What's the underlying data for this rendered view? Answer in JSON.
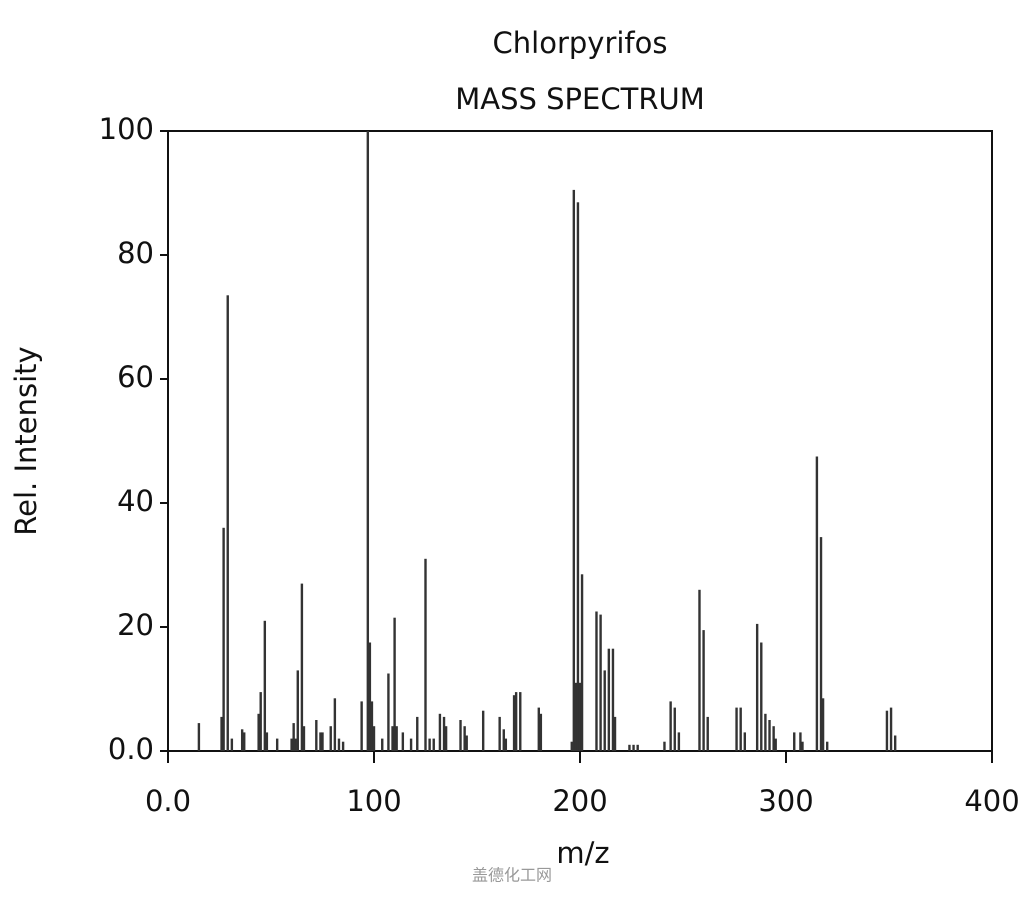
{
  "chart_data": {
    "type": "bar",
    "title": "Chlorpyrifos",
    "subtitle": "MASS SPECTRUM",
    "x_label": "m/z",
    "y_label": "Rel. Intensity",
    "watermark": "盖德化工网",
    "color": "#333333",
    "x": [
      15,
      26,
      27,
      29,
      31,
      36,
      37,
      44,
      45,
      47,
      48,
      53,
      60,
      61,
      62,
      63,
      65,
      66,
      72,
      74,
      75,
      79,
      81,
      83,
      85,
      94,
      97,
      98,
      99,
      100,
      104,
      107,
      109,
      110,
      111,
      114,
      118,
      121,
      125,
      127,
      129,
      132,
      134,
      135,
      142,
      144,
      145,
      153,
      161,
      163,
      164,
      168,
      169,
      171,
      180,
      181,
      196,
      197,
      198,
      199,
      200,
      201,
      208,
      210,
      212,
      214,
      216,
      217,
      224,
      226,
      228,
      241,
      244,
      246,
      248,
      258,
      260,
      262,
      276,
      278,
      280,
      286,
      288,
      290,
      292,
      294,
      295,
      304,
      307,
      308,
      315,
      317,
      318,
      320,
      349,
      351,
      353
    ],
    "values": [
      4.5,
      5.5,
      36,
      73.5,
      2,
      3.5,
      3,
      6,
      9.5,
      21,
      3,
      2,
      2,
      4.5,
      2,
      13,
      27,
      4,
      5,
      3,
      3,
      4,
      8.5,
      2,
      1.5,
      8,
      100,
      17.5,
      8,
      4,
      2,
      12.5,
      4,
      21.5,
      4,
      3,
      2,
      5.5,
      31,
      2,
      2,
      6,
      5.5,
      4,
      5,
      4,
      2.5,
      6.5,
      5.5,
      3.5,
      2,
      9,
      9.5,
      9.5,
      7,
      6,
      1.5,
      90.5,
      11,
      88.5,
      11,
      28.5,
      22.5,
      22,
      13,
      16.5,
      16.5,
      5.5,
      1,
      1,
      1,
      1.5,
      8,
      7,
      3,
      26,
      19.5,
      5.5,
      7,
      7,
      3,
      20.5,
      17.5,
      6,
      5,
      4,
      2,
      3,
      3,
      1.5,
      47.5,
      34.5,
      8.5,
      1.5,
      6.5,
      7,
      2.5
    ],
    "xlim": [
      0,
      400
    ],
    "xticks": [
      {
        "value": 0,
        "label": "0.0"
      },
      100,
      200,
      300,
      400
    ],
    "ylim": [
      0,
      100
    ],
    "yticks": [
      {
        "value": 0,
        "label": "0.0"
      },
      20,
      40,
      60,
      80,
      100
    ]
  }
}
